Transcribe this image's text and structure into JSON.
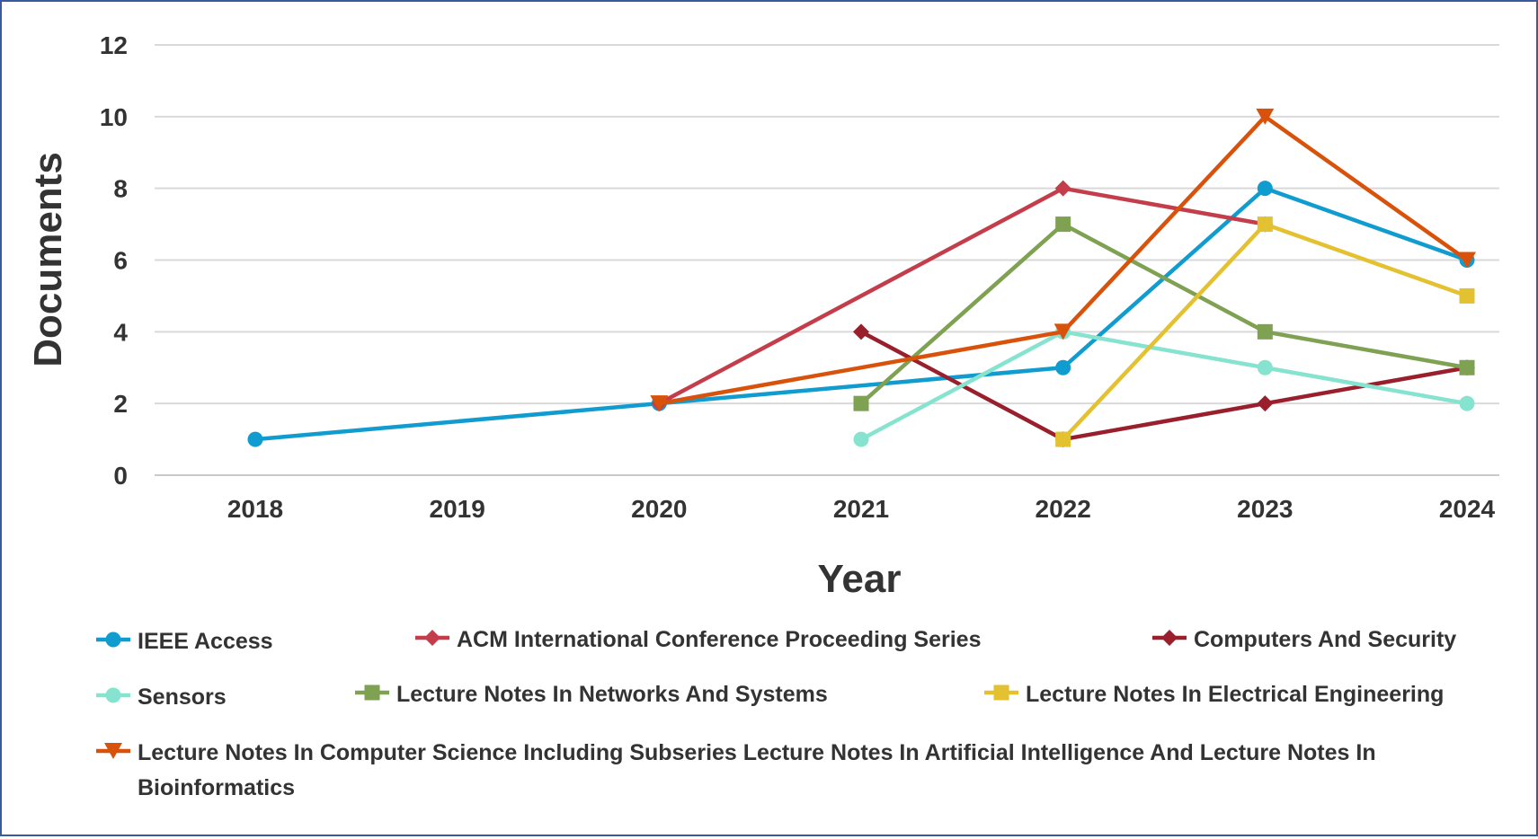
{
  "chart_data": {
    "type": "line",
    "title": "",
    "xlabel": "Year",
    "ylabel": "Documents",
    "ylim": [
      0,
      12
    ],
    "yticks": [
      0,
      2,
      4,
      6,
      8,
      10,
      12
    ],
    "grid": true,
    "legend_position": "bottom",
    "categories": [
      "2018",
      "2019",
      "2020",
      "2021",
      "2022",
      "2023",
      "2024"
    ],
    "series": [
      {
        "name": "IEEE Access",
        "color": "#119ccf",
        "marker": "circle",
        "values": [
          1,
          null,
          2,
          null,
          3,
          8,
          6
        ]
      },
      {
        "name": "ACM International Conference Proceeding Series",
        "color": "#c43d4b",
        "marker": "diamond",
        "values": [
          null,
          null,
          2,
          null,
          8,
          7,
          null
        ]
      },
      {
        "name": "Computers And Security",
        "color": "#991f2c",
        "marker": "diamond",
        "values": [
          null,
          null,
          null,
          4,
          1,
          2,
          3
        ]
      },
      {
        "name": "Sensors",
        "color": "#86e3cf",
        "marker": "circle",
        "values": [
          null,
          null,
          null,
          1,
          4,
          3,
          2
        ]
      },
      {
        "name": "Lecture Notes In Networks And Systems",
        "color": "#7ea152",
        "marker": "square",
        "values": [
          null,
          null,
          null,
          2,
          7,
          4,
          3
        ]
      },
      {
        "name": "Lecture Notes In Electrical Engineering",
        "color": "#e3c130",
        "marker": "square",
        "values": [
          null,
          null,
          null,
          null,
          1,
          7,
          5
        ]
      },
      {
        "name": "Lecture Notes In Computer Science Including Subseries Lecture Notes In Artificial Intelligence And Lecture Notes In Bioinformatics",
        "color": "#d9520b",
        "marker": "triangle-down",
        "values": [
          null,
          null,
          2,
          null,
          4,
          10,
          6
        ]
      }
    ]
  }
}
